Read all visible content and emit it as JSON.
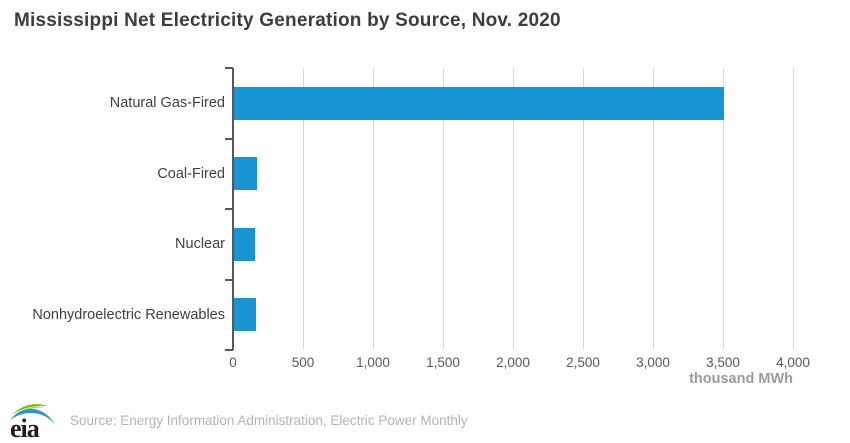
{
  "title": "Mississippi Net Electricity Generation by Source, Nov. 2020",
  "chart_data": {
    "type": "bar",
    "orientation": "horizontal",
    "title": "Mississippi Net Electricity Generation by Source, Nov. 2020",
    "categories": [
      "Natural Gas-Fired",
      "Coal-Fired",
      "Nuclear",
      "Nonhydroelectric Renewables"
    ],
    "values": [
      3500,
      165,
      150,
      160
    ],
    "xlabel": "thousand MWh",
    "ylabel": "",
    "xlim": [
      0,
      4000
    ],
    "xticks": [
      0,
      500,
      1000,
      1500,
      2000,
      2500,
      3000,
      3500,
      4000
    ],
    "xtick_labels": [
      "0",
      "500",
      "1,000",
      "1,500",
      "2,000",
      "2,500",
      "3,000",
      "3,500",
      "4,000"
    ],
    "grid": true,
    "legend": "none",
    "bar_color": "#1794d1",
    "axis_color": "#58585a",
    "gridline_color": "#d9d9d9"
  },
  "footer": {
    "logo_text": "eia",
    "logo_colors": {
      "green": "#76b82a",
      "yellow": "#cdd62f",
      "blue": "#2996d0"
    },
    "source": "Source: Energy Information Administration, Electric Power Monthly"
  }
}
